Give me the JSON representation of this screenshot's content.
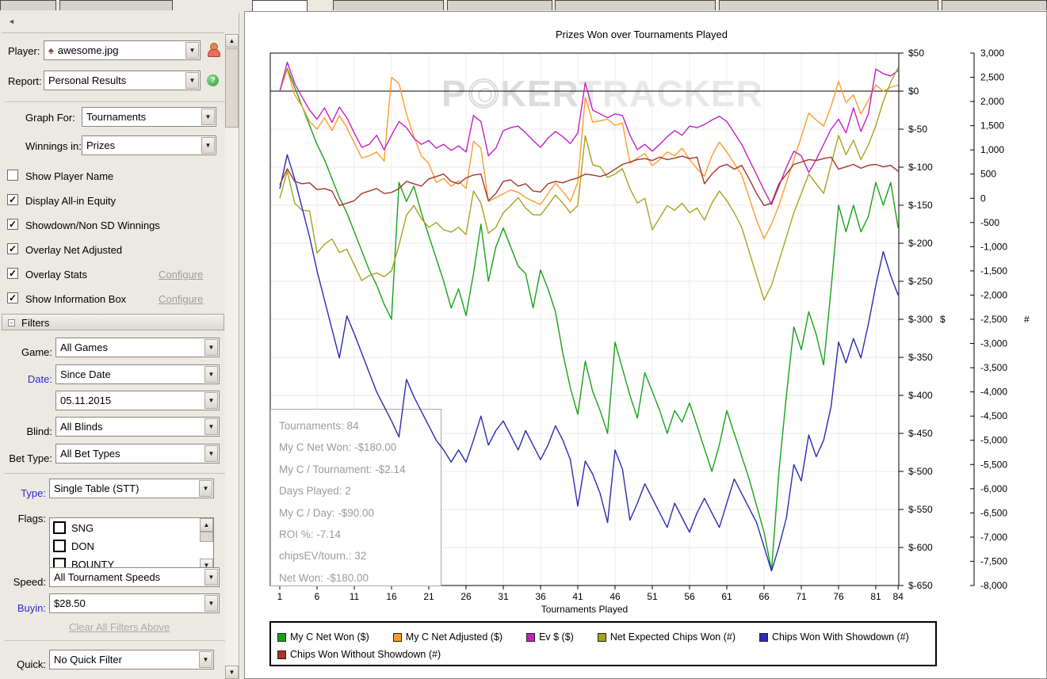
{
  "window": {
    "watermark_p1": "P",
    "watermark_p2": "KER",
    "watermark_p3": "TRACKER"
  },
  "sidebar": {
    "player": {
      "label": "Player:",
      "value": "awesome.jpg"
    },
    "report": {
      "label": "Report:",
      "value": "Personal Results"
    },
    "graph_for": {
      "label": "Graph For:",
      "value": "Tournaments"
    },
    "winnings_in": {
      "label": "Winnings in:",
      "value": "Prizes"
    },
    "configure_label": "Configure",
    "checkboxes": [
      {
        "label": "Show Player Name",
        "mark": ""
      },
      {
        "label": "Display All-in Equity",
        "mark": "✓"
      },
      {
        "label": "Showdown/Non SD Winnings",
        "mark": "✓"
      },
      {
        "label": "Overlay Net Adjusted",
        "mark": "✓"
      },
      {
        "label": "Overlay Stats",
        "mark": "✓"
      },
      {
        "label": "Show Information Box",
        "mark": "✓"
      }
    ],
    "filters_header": "Filters",
    "filters": {
      "game": {
        "label": "Game:",
        "value": "All Games"
      },
      "date": {
        "label": "Date:",
        "value": "Since Date"
      },
      "date_value": {
        "value": "05.11.2015"
      },
      "blind": {
        "label": "Blind:",
        "value": "All Blinds"
      },
      "bet_type": {
        "label": "Bet Type:",
        "value": "All Bet Types"
      },
      "type": {
        "label": "Type:",
        "value": "Single Table (STT)"
      },
      "flags": {
        "label": "Flags:",
        "items": [
          "SNG",
          "DON",
          "BOUNTY"
        ]
      },
      "speed": {
        "label": "Speed:",
        "value": "All Tournament Speeds"
      },
      "buyin": {
        "label": "Buyin:",
        "value": "$28.50"
      },
      "quick": {
        "label": "Quick:",
        "value": "No Quick Filter"
      }
    },
    "clear_link": "Clear All Filters Above"
  },
  "info_box": {
    "lines": [
      "Tournaments: 84",
      "My C Net Won: -$180.00",
      "My C / Tournament: -$2.14",
      "Days Played: 2",
      "My C / Day: -$90.00",
      "ROI %: -7.14",
      "chipsEV/tourn.: 32",
      "Net Won: -$180.00"
    ]
  },
  "chart_data": {
    "type": "line",
    "title": "Prizes Won over Tournaments Played",
    "xlabel": "Tournaments Played",
    "x_ticks": [
      1,
      6,
      11,
      16,
      21,
      26,
      31,
      36,
      41,
      46,
      51,
      56,
      61,
      66,
      71,
      76,
      81,
      84
    ],
    "dollar_axis_label": "$",
    "count_axis_label": "#",
    "dollar_ticks": [
      50,
      0,
      -50,
      -100,
      -150,
      -200,
      -250,
      -300,
      -350,
      -400,
      -450,
      -500,
      -550,
      -600,
      -650
    ],
    "count_ticks": [
      3000,
      2500,
      2000,
      1500,
      1000,
      500,
      0,
      -500,
      -1000,
      -1500,
      -2000,
      -2500,
      -3000,
      -3500,
      -4000,
      -4500,
      -5000,
      -5500,
      -6000,
      -6500,
      -7000,
      -7500,
      -8000
    ],
    "dollar_range": [
      -650,
      50
    ],
    "count_range": [
      -8000,
      3000
    ],
    "x_range": [
      1,
      84
    ],
    "grid": true,
    "legend_position": "bottom",
    "series": [
      {
        "name": "My C Net Won ($)",
        "axis": "$",
        "color": "#17A317",
        "values": [
          0,
          30,
          5,
          -20,
          -45,
          -70,
          -90,
          -115,
          -140,
          -160,
          -185,
          -210,
          -235,
          -255,
          -280,
          -300,
          -120,
          -145,
          -125,
          -160,
          -190,
          -220,
          -250,
          -285,
          -260,
          -295,
          -240,
          -175,
          -250,
          -205,
          -180,
          -205,
          -230,
          -240,
          -285,
          -235,
          -260,
          -290,
          -345,
          -390,
          -425,
          -355,
          -395,
          -420,
          -450,
          -330,
          -365,
          -400,
          -430,
          -370,
          -395,
          -420,
          -450,
          -420,
          -435,
          -410,
          -440,
          -470,
          -500,
          -465,
          -420,
          -450,
          -480,
          -510,
          -545,
          -580,
          -630,
          -500,
          -400,
          -310,
          -340,
          -290,
          -320,
          -360,
          -260,
          -150,
          -185,
          -150,
          -185,
          -165,
          -120,
          -150,
          -120,
          -180
        ]
      },
      {
        "name": "My C Net Adjusted ($)",
        "axis": "$",
        "color": "#FF9B2B",
        "values": [
          0,
          28,
          -5,
          -20,
          -40,
          -50,
          -35,
          -52,
          -32,
          -48,
          -68,
          -88,
          -85,
          -80,
          -92,
          18,
          10,
          -30,
          -60,
          -85,
          -95,
          -120,
          -115,
          -125,
          -118,
          -128,
          -66,
          -75,
          -145,
          -140,
          -135,
          -130,
          -133,
          -140,
          -145,
          -149,
          -135,
          -121,
          -132,
          -145,
          -120,
          -8,
          -41,
          -39,
          -37,
          -45,
          -42,
          -95,
          -88,
          -82,
          -98,
          -90,
          -80,
          -85,
          -75,
          -90,
          -102,
          -112,
          -85,
          -67,
          -80,
          -95,
          -110,
          -140,
          -170,
          -194,
          -175,
          -150,
          -120,
          -90,
          -60,
          -29,
          -38,
          -46,
          -20,
          13,
          -15,
          -5,
          -30,
          -12,
          8,
          0,
          5,
          8
        ]
      },
      {
        "name": "Ev $ ($)",
        "axis": "$",
        "color": "#C421C4",
        "values": [
          0,
          38,
          10,
          -8,
          -25,
          -37,
          -22,
          -41,
          -21,
          -35,
          -55,
          -74,
          -70,
          -58,
          -77,
          -58,
          -40,
          -48,
          -62,
          -70,
          -65,
          -75,
          -70,
          -78,
          -72,
          -80,
          -32,
          -40,
          -85,
          -75,
          -52,
          -48,
          -46,
          -55,
          -65,
          -74,
          -62,
          -53,
          -60,
          -69,
          -55,
          11,
          -25,
          -30,
          -35,
          -30,
          -32,
          -58,
          -77,
          -70,
          -79,
          -70,
          -60,
          -52,
          -58,
          -46,
          -48,
          -44,
          -38,
          -33,
          -40,
          -55,
          -70,
          -90,
          -110,
          -130,
          -149,
          -125,
          -100,
          -79,
          -85,
          -107,
          -90,
          -70,
          -50,
          -37,
          -55,
          -22,
          -53,
          -30,
          29,
          23,
          20,
          27
        ]
      },
      {
        "name": "Net Expected Chips Won (#)",
        "axis": "#",
        "color": "#A7A31E",
        "values": [
          0,
          560,
          -100,
          -250,
          -260,
          -1130,
          -950,
          -840,
          -1120,
          -1050,
          -1380,
          -1700,
          -1600,
          -1540,
          -1620,
          -1500,
          -970,
          -350,
          -150,
          -420,
          -600,
          -500,
          -650,
          -700,
          -600,
          -750,
          150,
          -100,
          -720,
          -600,
          -300,
          -150,
          15,
          -200,
          -340,
          -344,
          -150,
          66,
          -100,
          -300,
          -150,
          1295,
          690,
          650,
          430,
          500,
          610,
          200,
          -100,
          0,
          -650,
          -400,
          -150,
          -250,
          -100,
          -300,
          -200,
          -450,
          -100,
          150,
          -50,
          -300,
          -600,
          -1100,
          -1600,
          -2100,
          -1800,
          -1300,
          -800,
          -300,
          100,
          500,
          300,
          100,
          700,
          1300,
          900,
          1200,
          800,
          1100,
          1500,
          2000,
          2400,
          2700
        ]
      },
      {
        "name": "Chips Won With Showdown (#)",
        "axis": "#",
        "color": "#2B2BB3",
        "values": [
          200,
          900,
          400,
          -200,
          -800,
          -1500,
          -2100,
          -2700,
          -3300,
          -2430,
          -2800,
          -3200,
          -3600,
          -4000,
          -4300,
          -4600,
          -4930,
          -3740,
          -4100,
          -4400,
          -4700,
          -5000,
          -5200,
          -5450,
          -5200,
          -5450,
          -5000,
          -4500,
          -5100,
          -4800,
          -4600,
          -4900,
          -5200,
          -4800,
          -5100,
          -5400,
          -5100,
          -4700,
          -5000,
          -5400,
          -6360,
          -5430,
          -5700,
          -6100,
          -6700,
          -5200,
          -5600,
          -6650,
          -6300,
          -5900,
          -6200,
          -6500,
          -6800,
          -6300,
          -6600,
          -6900,
          -6500,
          -6200,
          -6500,
          -6800,
          -6300,
          -5800,
          -6100,
          -6400,
          -6700,
          -7200,
          -7700,
          -7200,
          -6600,
          -5500,
          -5840,
          -4890,
          -5340,
          -5000,
          -4300,
          -2970,
          -3400,
          -2900,
          -3300,
          -2600,
          -1800,
          -1100,
          -1600,
          -2000
        ]
      },
      {
        "name": "Chips Won Without Showdown (#)",
        "axis": "#",
        "color": "#A6352C",
        "values": [
          280,
          610,
          350,
          300,
          320,
          180,
          200,
          150,
          -150,
          -100,
          -50,
          100,
          150,
          200,
          100,
          120,
          200,
          350,
          300,
          250,
          400,
          450,
          500,
          350,
          300,
          420,
          480,
          500,
          -50,
          100,
          350,
          380,
          250,
          300,
          150,
          130,
          300,
          350,
          320,
          380,
          420,
          500,
          480,
          450,
          500,
          600,
          700,
          750,
          800,
          820,
          780,
          850,
          800,
          830,
          870,
          820,
          850,
          300,
          500,
          650,
          700,
          600,
          680,
          400,
          100,
          -150,
          -100,
          300,
          500,
          700,
          750,
          800,
          780,
          820,
          850,
          600,
          650,
          700,
          620,
          680,
          700,
          650,
          680,
          560
        ]
      }
    ]
  }
}
